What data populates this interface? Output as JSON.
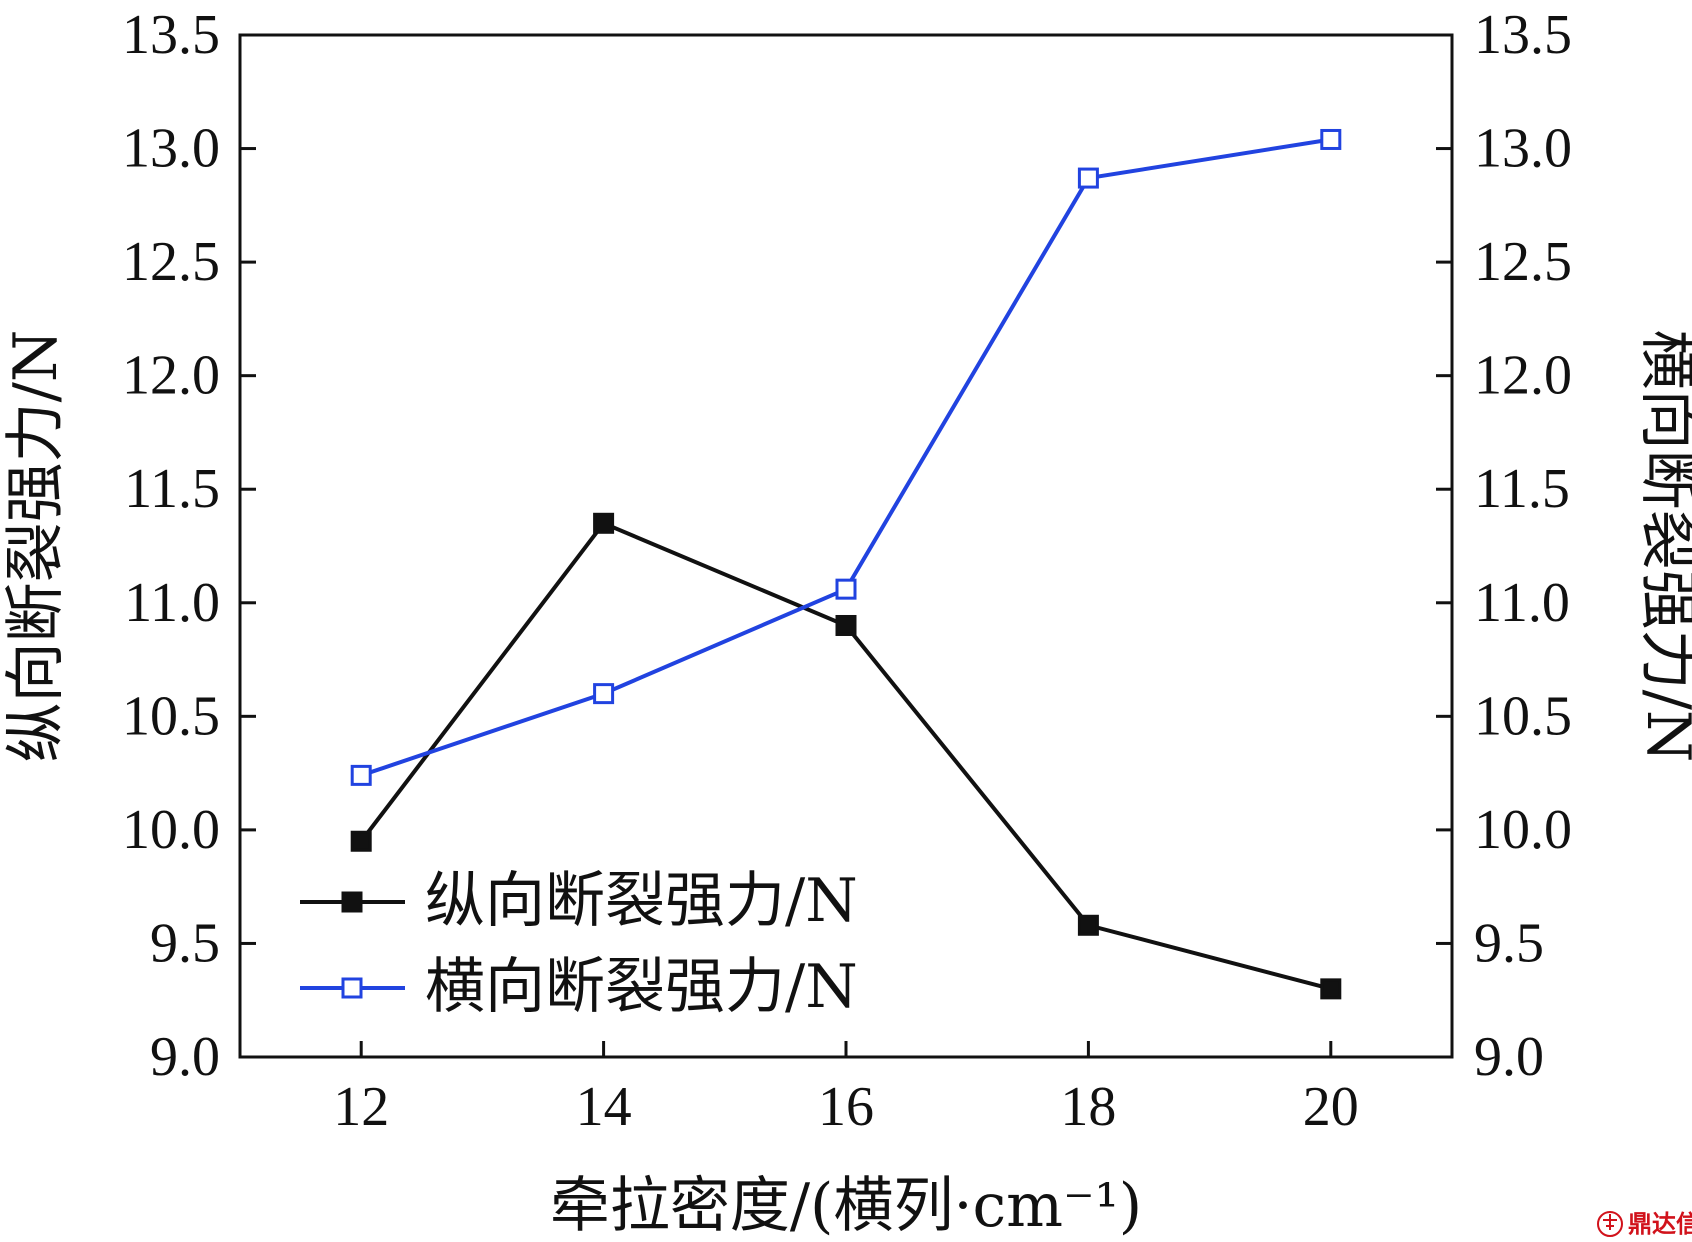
{
  "chart_data": {
    "type": "line",
    "x": [
      12,
      14,
      16,
      18,
      20
    ],
    "xlim": [
      11,
      21
    ],
    "x_ticks": [
      12,
      14,
      16,
      18,
      20
    ],
    "x_tick_labels": [
      "12",
      "14",
      "16",
      "18",
      "20"
    ],
    "xlabel": "牵拉密度/(横列·cm⁻¹)",
    "ylabel_left": "纵向断裂强力/N",
    "ylabel_right": "横向断裂强力/N",
    "ylim_left": [
      9.0,
      13.5
    ],
    "ylim_right": [
      9.0,
      13.5
    ],
    "y_ticks": [
      9.0,
      9.5,
      10.0,
      10.5,
      11.0,
      11.5,
      12.0,
      12.5,
      13.0,
      13.5
    ],
    "y_tick_labels": [
      "9.0",
      "9.5",
      "10.0",
      "10.5",
      "11.0",
      "11.5",
      "12.0",
      "12.5",
      "13.0",
      "13.5"
    ],
    "grid": false,
    "legend_position": "bottom-left",
    "series": [
      {
        "name": "纵向断裂强力/N",
        "axis": "left",
        "values": [
          9.95,
          11.35,
          10.9,
          9.58,
          9.3
        ],
        "color": "#111111",
        "marker": "filled-square"
      },
      {
        "name": "横向断裂强力/N",
        "axis": "right",
        "values": [
          10.24,
          10.6,
          11.06,
          12.87,
          13.04
        ],
        "color": "#2143e0",
        "marker": "open-square"
      }
    ]
  },
  "watermark": {
    "text": "鼎达信",
    "icon": "logo-badge-icon",
    "color": "#d1121b"
  }
}
